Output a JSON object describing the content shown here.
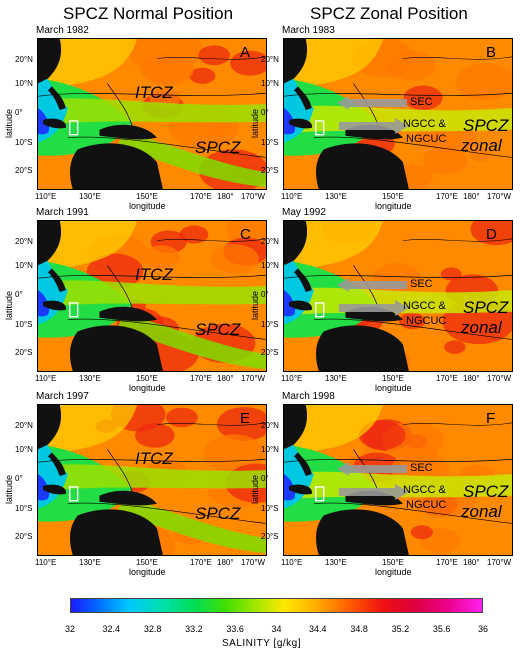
{
  "titles": {
    "left": "SPCZ Normal Position",
    "right": "SPCZ Zonal Position"
  },
  "axes": {
    "latitude": "latitude",
    "longitude": "longitude",
    "lat_ticks": [
      "20°N",
      "10°N",
      "0°",
      "10°S",
      "20°S"
    ],
    "lon_ticks": [
      "110°E",
      "130°E",
      "150°E",
      "170°E",
      "180°",
      "170°W"
    ]
  },
  "panels": [
    {
      "date": "March 1982",
      "letter": "A",
      "labels": [
        "ITCZ",
        "SPCZ"
      ]
    },
    {
      "date": "March 1983",
      "letter": "B",
      "labels": [
        "SEC",
        "NGCC &",
        "NGCUC",
        "SPCZ",
        "zonal"
      ]
    },
    {
      "date": "March 1991",
      "letter": "C",
      "labels": [
        "ITCZ",
        "SPCZ"
      ]
    },
    {
      "date": "May 1992",
      "letter": "D",
      "labels": [
        "SEC",
        "NGCC &",
        "NGCUC",
        "SPCZ",
        "zonal"
      ]
    },
    {
      "date": "March 1997",
      "letter": "E",
      "labels": [
        "ITCZ",
        "SPCZ"
      ]
    },
    {
      "date": "March 1998",
      "letter": "F",
      "labels": [
        "SEC",
        "NGCC &",
        "NGCUC",
        "SPCZ",
        "zonal"
      ]
    }
  ],
  "colorbar": {
    "title": "SALINITY [g/kg]",
    "ticks": [
      "32",
      "32.4",
      "32.8",
      "33.2",
      "33.6",
      "34",
      "34.4",
      "34.8",
      "35.2",
      "35.6",
      "36"
    ],
    "min": 32,
    "max": 36
  }
}
